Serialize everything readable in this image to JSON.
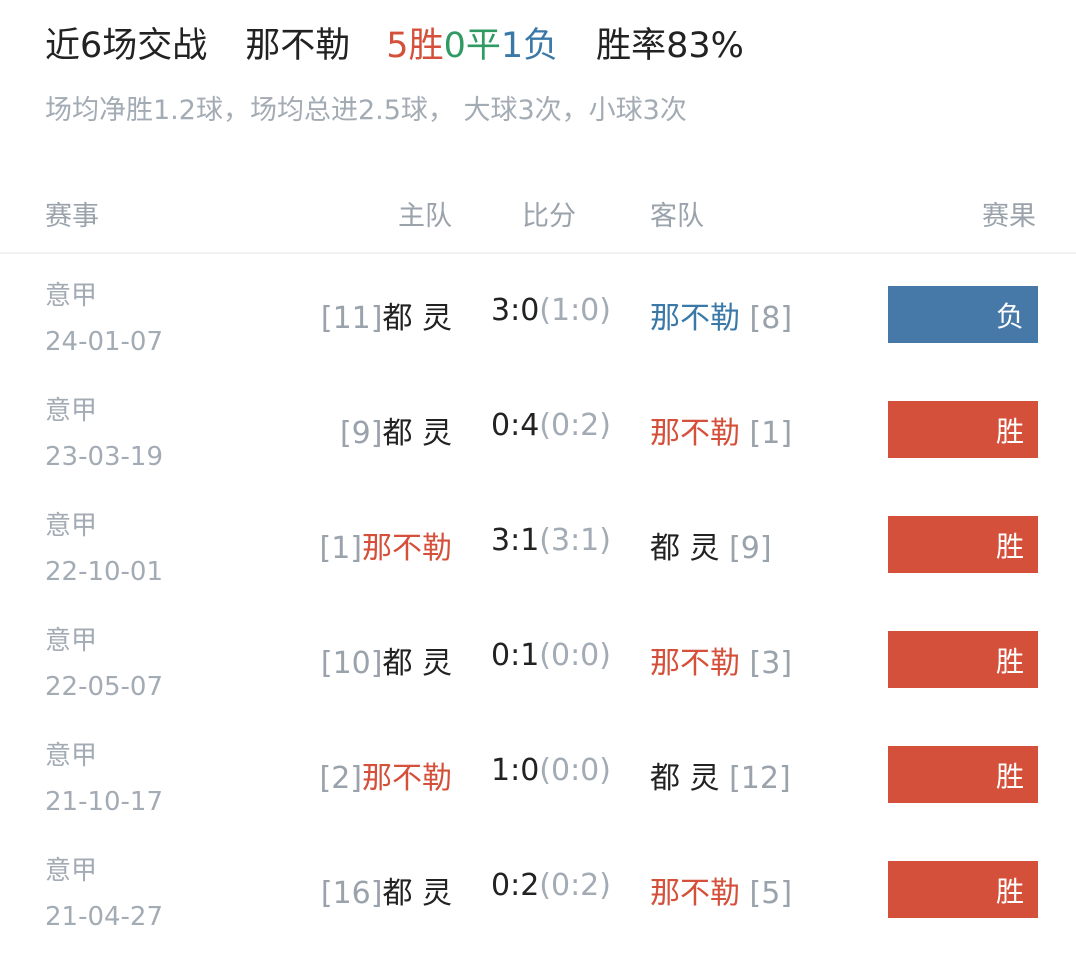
{
  "header": {
    "recent_label": "近6场交战",
    "team": "那不勒",
    "wins": "5胜",
    "draws": "0平",
    "losses": "1负",
    "win_rate": "胜率83%"
  },
  "summary": "场均净胜1.2球，场均总进2.5球， 大球3次，小球3次",
  "columns": {
    "event": "赛事",
    "home": "主队",
    "score": "比分",
    "away": "客队",
    "result": "赛果"
  },
  "colors": {
    "win": "#d4503a",
    "loss": "#4779a8",
    "draw": "#2f9a63"
  },
  "matches": [
    {
      "league": "意甲",
      "date": "24-01-07",
      "home_rank": "[11]",
      "home": "都 灵",
      "score": "3:0",
      "half": "(1:0)",
      "away": "那不勒",
      "away_rank": " [8]",
      "main_side": "away",
      "result": "负",
      "result_type": "loss"
    },
    {
      "league": "意甲",
      "date": "23-03-19",
      "home_rank": "[9]",
      "home": "都 灵",
      "score": "0:4",
      "half": "(0:2)",
      "away": "那不勒",
      "away_rank": " [1]",
      "main_side": "away",
      "result": "胜",
      "result_type": "win"
    },
    {
      "league": "意甲",
      "date": "22-10-01",
      "home_rank": "[1]",
      "home": "那不勒",
      "score": "3:1",
      "half": "(3:1)",
      "away": "都 灵",
      "away_rank": " [9]",
      "main_side": "home",
      "result": "胜",
      "result_type": "win"
    },
    {
      "league": "意甲",
      "date": "22-05-07",
      "home_rank": "[10]",
      "home": "都 灵",
      "score": "0:1",
      "half": "(0:0)",
      "away": "那不勒",
      "away_rank": " [3]",
      "main_side": "away",
      "result": "胜",
      "result_type": "win"
    },
    {
      "league": "意甲",
      "date": "21-10-17",
      "home_rank": "[2]",
      "home": "那不勒",
      "score": "1:0",
      "half": "(0:0)",
      "away": "都 灵",
      "away_rank": " [12]",
      "main_side": "home",
      "result": "胜",
      "result_type": "win"
    },
    {
      "league": "意甲",
      "date": "21-04-27",
      "home_rank": "[16]",
      "home": "都 灵",
      "score": "0:2",
      "half": "(0:2)",
      "away": "那不勒",
      "away_rank": " [5]",
      "main_side": "away",
      "result": "胜",
      "result_type": "win"
    }
  ]
}
